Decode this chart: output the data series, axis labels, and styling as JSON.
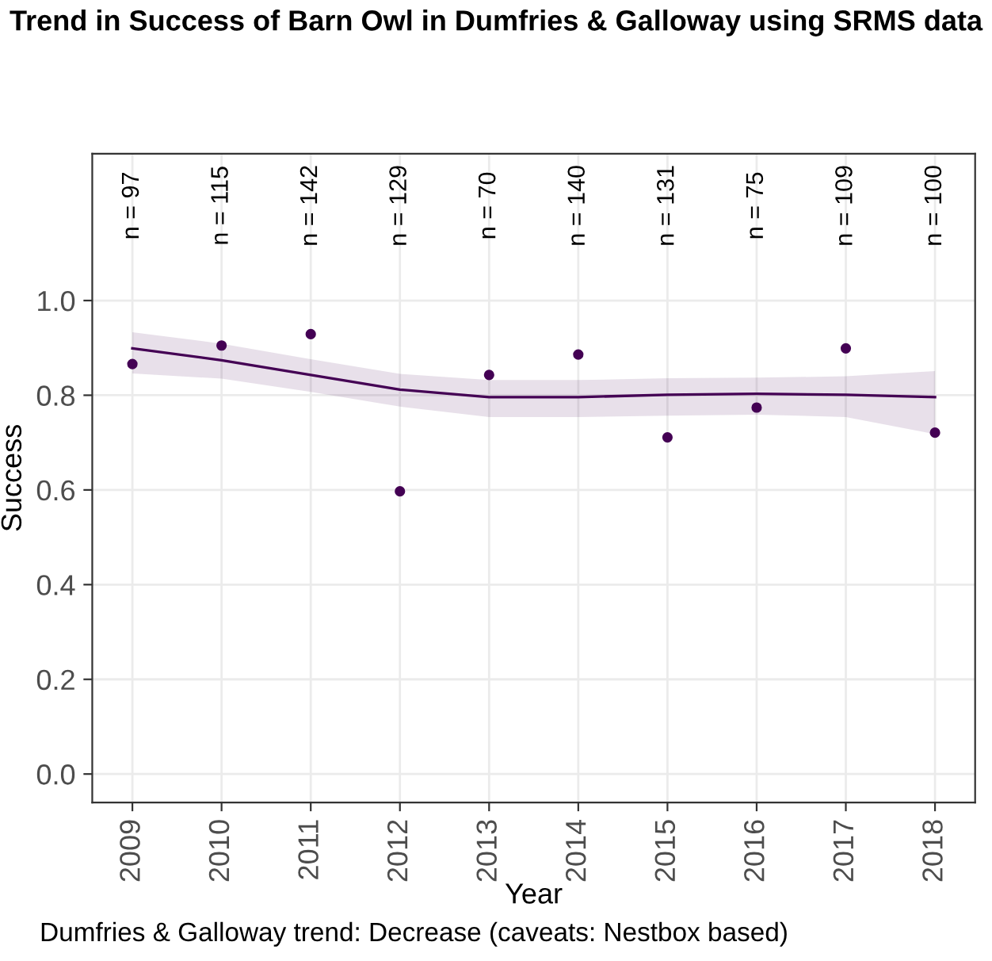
{
  "chart_data": {
    "type": "scatter",
    "title": "Trend in Success of Barn Owl in Dumfries & Galloway using SRMS data",
    "xlabel": "Year",
    "ylabel": "Success",
    "x": [
      2009,
      2010,
      2011,
      2012,
      2013,
      2014,
      2015,
      2016,
      2017,
      2018
    ],
    "series": [
      {
        "color": "#440154",
        "marker": "circle",
        "values": [
          0.866,
          0.905,
          0.929,
          0.597,
          0.843,
          0.886,
          0.711,
          0.774,
          0.899,
          0.721
        ]
      },
      {
        "type": "line",
        "color": "#440154",
        "values": [
          0.899,
          0.874,
          0.843,
          0.812,
          0.796,
          0.796,
          0.801,
          0.803,
          0.801,
          0.796
        ],
        "lower": [
          0.846,
          0.835,
          0.807,
          0.776,
          0.754,
          0.754,
          0.757,
          0.759,
          0.754,
          0.718
        ],
        "upper": [
          0.933,
          0.909,
          0.876,
          0.845,
          0.832,
          0.832,
          0.836,
          0.837,
          0.84,
          0.851
        ]
      }
    ],
    "xlim": [
      2008.55,
      2018.45
    ],
    "xticks": [
      2009,
      2010,
      2011,
      2012,
      2013,
      2014,
      2015,
      2016,
      2017,
      2018
    ],
    "ylim": [
      -0.06,
      1.31
    ],
    "yticks": [
      {
        "value": 0,
        "label": "0.0"
      },
      {
        "value": 0.2,
        "label": "0.2"
      },
      {
        "value": 0.4,
        "label": "0.4"
      },
      {
        "value": 0.6,
        "label": "0.6"
      },
      {
        "value": 0.8,
        "label": "0.8"
      },
      {
        "value": 1,
        "label": "1.0"
      }
    ],
    "grid": true,
    "legend": false,
    "annotations": [
      "n = 97",
      "n = 115",
      "n = 142",
      "n = 129",
      "n = 70",
      "n = 140",
      "n = 131",
      "n = 75",
      "n = 109",
      "n = 100",
      "Dumfries & Galloway trend: Decrease (caveats: Nestbox based)"
    ]
  }
}
